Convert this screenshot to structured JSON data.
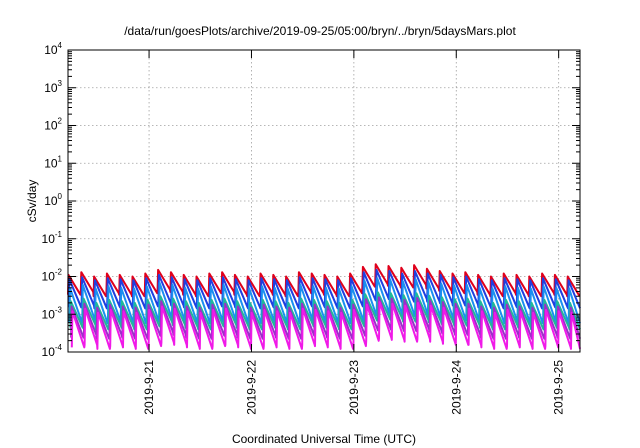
{
  "chart_data": {
    "type": "line",
    "title": "/data/run/goesPlots/archive/2019-09-25/05:00/bryn/../bryn/5daysMars.plot",
    "xlabel": "Coordinated Universal Time (UTC)",
    "ylabel": "cSv/day",
    "yscale": "log",
    "ylim": [
      0.0001,
      10000
    ],
    "y_ticks": [
      {
        "base": "10",
        "exp": "4",
        "value": 10000
      },
      {
        "base": "10",
        "exp": "3",
        "value": 1000
      },
      {
        "base": "10",
        "exp": "2",
        "value": 100
      },
      {
        "base": "10",
        "exp": "1",
        "value": 10
      },
      {
        "base": "10",
        "exp": "0",
        "value": 1
      },
      {
        "base": "10",
        "exp": "-1",
        "value": 0.1
      },
      {
        "base": "10",
        "exp": "-2",
        "value": 0.01
      },
      {
        "base": "10",
        "exp": "-3",
        "value": 0.001
      },
      {
        "base": "10",
        "exp": "-4",
        "value": 0.0001
      }
    ],
    "xlim": [
      "2019-09-20T05:00",
      "2019-09-25T05:00"
    ],
    "x_ticks": [
      "2019-9-21",
      "2019-9-22",
      "2019-9-23",
      "2019-9-24",
      "2019-9-25"
    ],
    "grid": true,
    "legend": "none",
    "period_hours": 3,
    "series": [
      {
        "color": "#e0001b",
        "peak": [
          0.011,
          0.013,
          0.01,
          0.012,
          0.011,
          0.01,
          0.012,
          0.015,
          0.013,
          0.011,
          0.01,
          0.012,
          0.013,
          0.011,
          0.01,
          0.012,
          0.011,
          0.01,
          0.013,
          0.012,
          0.011,
          0.01,
          0.012,
          0.018,
          0.021,
          0.019,
          0.017,
          0.02,
          0.016,
          0.014,
          0.012,
          0.013,
          0.011,
          0.01,
          0.012,
          0.011,
          0.01,
          0.012,
          0.011,
          0.01
        ],
        "trough_ratio": 0.3
      },
      {
        "color": "#1f3fe0",
        "peak": [
          0.0085,
          0.0095,
          0.008,
          0.009,
          0.0085,
          0.008,
          0.009,
          0.011,
          0.0095,
          0.0085,
          0.008,
          0.009,
          0.0095,
          0.0085,
          0.008,
          0.009,
          0.0085,
          0.008,
          0.0095,
          0.009,
          0.0085,
          0.008,
          0.009,
          0.013,
          0.015,
          0.014,
          0.012,
          0.014,
          0.012,
          0.011,
          0.0095,
          0.01,
          0.0085,
          0.008,
          0.009,
          0.0085,
          0.008,
          0.009,
          0.0085,
          0.008
        ],
        "trough_ratio": 0.18
      },
      {
        "color": "#1a8ff0",
        "peak": [
          0.005,
          0.006,
          0.0048,
          0.0055,
          0.005,
          0.0048,
          0.0055,
          0.0068,
          0.006,
          0.005,
          0.0048,
          0.0055,
          0.006,
          0.005,
          0.0048,
          0.0055,
          0.005,
          0.0048,
          0.006,
          0.0055,
          0.005,
          0.0048,
          0.0055,
          0.0078,
          0.009,
          0.0085,
          0.0075,
          0.0085,
          0.0072,
          0.0065,
          0.0058,
          0.006,
          0.005,
          0.0048,
          0.0055,
          0.005,
          0.0048,
          0.0055,
          0.005,
          0.0048
        ],
        "trough_ratio": 0.12
      },
      {
        "color": "#20b89a",
        "peak": [
          0.0022,
          0.0026,
          0.002,
          0.0024,
          0.0022,
          0.002,
          0.0024,
          0.003,
          0.0026,
          0.0022,
          0.002,
          0.0024,
          0.0026,
          0.0022,
          0.002,
          0.0024,
          0.0022,
          0.002,
          0.0026,
          0.0024,
          0.0022,
          0.002,
          0.0024,
          0.0034,
          0.0038,
          0.0036,
          0.0032,
          0.0036,
          0.0031,
          0.0028,
          0.0025,
          0.0026,
          0.0022,
          0.002,
          0.0024,
          0.0022,
          0.002,
          0.0024,
          0.0022,
          0.002
        ],
        "trough_ratio": 0.2
      },
      {
        "color": "#9b30c8",
        "peak": [
          0.0016,
          0.0019,
          0.0015,
          0.0018,
          0.0016,
          0.0015,
          0.0018,
          0.0022,
          0.0019,
          0.0016,
          0.0015,
          0.0018,
          0.0019,
          0.0016,
          0.0015,
          0.0018,
          0.0016,
          0.0015,
          0.0019,
          0.0018,
          0.0016,
          0.0015,
          0.0018,
          0.0025,
          0.0028,
          0.0026,
          0.0024,
          0.0027,
          0.0023,
          0.0021,
          0.0019,
          0.0019,
          0.0016,
          0.0015,
          0.0018,
          0.0016,
          0.0015,
          0.0018,
          0.0016,
          0.0015
        ],
        "trough_ratio": 0.15
      },
      {
        "color": "#f01ae8",
        "peak": [
          0.0012,
          0.0014,
          0.0011,
          0.0013,
          0.0012,
          0.0011,
          0.0013,
          0.0016,
          0.0014,
          0.0012,
          0.0011,
          0.0013,
          0.0014,
          0.0012,
          0.0011,
          0.0013,
          0.0012,
          0.0011,
          0.0014,
          0.0013,
          0.0012,
          0.0011,
          0.0013,
          0.0018,
          0.0021,
          0.0019,
          0.0017,
          0.002,
          0.0017,
          0.0015,
          0.0014,
          0.0014,
          0.0012,
          0.0011,
          0.0013,
          0.0012,
          0.0011,
          0.0013,
          0.0012,
          0.0011
        ],
        "trough_ratio": 0.11
      }
    ]
  }
}
